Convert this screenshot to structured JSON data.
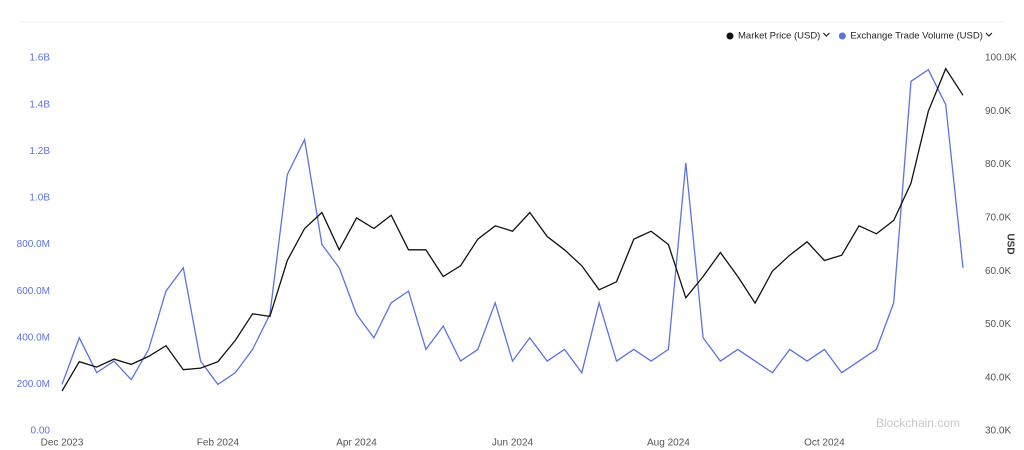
{
  "chart_data": {
    "type": "line",
    "categories": [
      "Dec 2023",
      null,
      null,
      null,
      null,
      null,
      null,
      null,
      null,
      "Feb 2024",
      null,
      null,
      null,
      null,
      null,
      null,
      null,
      "Apr 2024",
      null,
      null,
      null,
      null,
      null,
      null,
      null,
      null,
      "Jun 2024",
      null,
      null,
      null,
      null,
      null,
      null,
      null,
      null,
      "Aug 2024",
      null,
      null,
      null,
      null,
      null,
      null,
      null,
      null,
      "Oct 2024",
      null,
      null,
      null,
      null,
      null,
      null,
      null,
      null
    ],
    "series": [
      {
        "name": "Market Price (USD)",
        "color": "#111111",
        "axis": "y2",
        "values": [
          37500,
          43000,
          42000,
          43500,
          42500,
          44000,
          46000,
          41500,
          41800,
          43000,
          47000,
          52000,
          51500,
          62000,
          68000,
          71000,
          64000,
          70000,
          68000,
          70500,
          64000,
          64000,
          59000,
          61000,
          66000,
          68500,
          67500,
          71000,
          66500,
          64000,
          61000,
          56500,
          58000,
          66000,
          67500,
          65000,
          55000,
          59000,
          63500,
          59000,
          54000,
          60000,
          63000,
          65500,
          62000,
          63000,
          68500,
          67000,
          69500,
          76500,
          90000,
          98000,
          93000
        ]
      },
      {
        "name": "Exchange Trade Volume (USD)",
        "color": "#5b73e0",
        "axis": "y",
        "values": [
          200000000,
          400000000,
          250000000,
          300000000,
          220000000,
          350000000,
          600000000,
          700000000,
          300000000,
          200000000,
          250000000,
          350000000,
          500000000,
          1100000000,
          1250000000,
          800000000,
          700000000,
          500000000,
          400000000,
          550000000,
          600000000,
          350000000,
          450000000,
          300000000,
          350000000,
          550000000,
          300000000,
          400000000,
          300000000,
          350000000,
          250000000,
          550000000,
          300000000,
          350000000,
          300000000,
          350000000,
          1150000000,
          400000000,
          300000000,
          350000000,
          300000000,
          250000000,
          350000000,
          300000000,
          350000000,
          250000000,
          300000000,
          350000000,
          550000000,
          1500000000,
          1550000000,
          1400000000,
          700000000
        ]
      }
    ],
    "ylim": [
      0,
      1600000000
    ],
    "yticks": [
      {
        "value": 0,
        "label": "0.00"
      },
      {
        "value": 200000000,
        "label": "200.0M"
      },
      {
        "value": 400000000,
        "label": "400.0M"
      },
      {
        "value": 600000000,
        "label": "600.0M"
      },
      {
        "value": 800000000,
        "label": "800.0M"
      },
      {
        "value": 1000000000,
        "label": "1.0B"
      },
      {
        "value": 1200000000,
        "label": "1.2B"
      },
      {
        "value": 1400000000,
        "label": "1.4B"
      },
      {
        "value": 1600000000,
        "label": "1.6B"
      }
    ],
    "y2lim": [
      30000,
      100000
    ],
    "y2ticks": [
      {
        "value": 30000,
        "label": "30.0K"
      },
      {
        "value": 40000,
        "label": "40.0K"
      },
      {
        "value": 50000,
        "label": "50.0K"
      },
      {
        "value": 60000,
        "label": "60.0K"
      },
      {
        "value": 70000,
        "label": "70.0K"
      },
      {
        "value": 80000,
        "label": "80.0K"
      },
      {
        "value": 90000,
        "label": "90.0K"
      },
      {
        "value": 100000,
        "label": "100.0K"
      }
    ],
    "y2label": "USD",
    "watermark": "Blockchain.com",
    "legend": "top-right"
  }
}
